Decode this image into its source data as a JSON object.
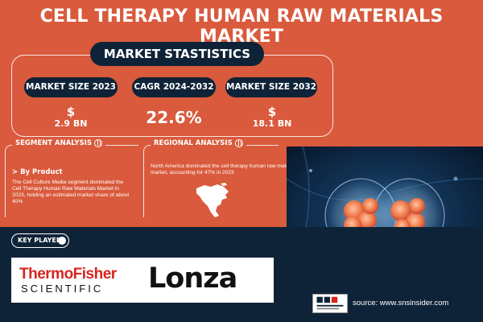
{
  "title": "CELL THERAPY HUMAN RAW MATERIALS MARKET",
  "stats": {
    "heading": "MARKET STASTISTICS",
    "size_2023_label": "MARKET SIZE 2023",
    "size_2023_dollar": "$",
    "size_2023_value": "2.9 BN",
    "cagr_label": "CAGR 2024-2032",
    "cagr_value": "22.6%",
    "size_2032_label": "MARKET SIZE 2032",
    "size_2032_dollar": "$",
    "size_2032_value": "18.1 BN"
  },
  "segment": {
    "title": "SEGMENT ANALYSIS",
    "subtitle": "> By Product",
    "text": "The Cell Culture Media segment dominated the Cell Therapy Human Raw Materials Market in 2023, holding an estimated market share of about 40%"
  },
  "regional": {
    "title": "REGIONAL ANALYSIS",
    "text": "North America dominated the cell therapy human raw materials market, accounting for 47% in 2023"
  },
  "key_players": {
    "label": "KEY PLAYERS",
    "thermo_line1": "ThermoFisher",
    "thermo_line2": "SCIENTIFIC",
    "lonza": "Lonza"
  },
  "source": "source: www.snsinsider.com",
  "colors": {
    "background": "#d95a3c",
    "navy": "#0f2338",
    "thermo_red": "#d6251e"
  }
}
